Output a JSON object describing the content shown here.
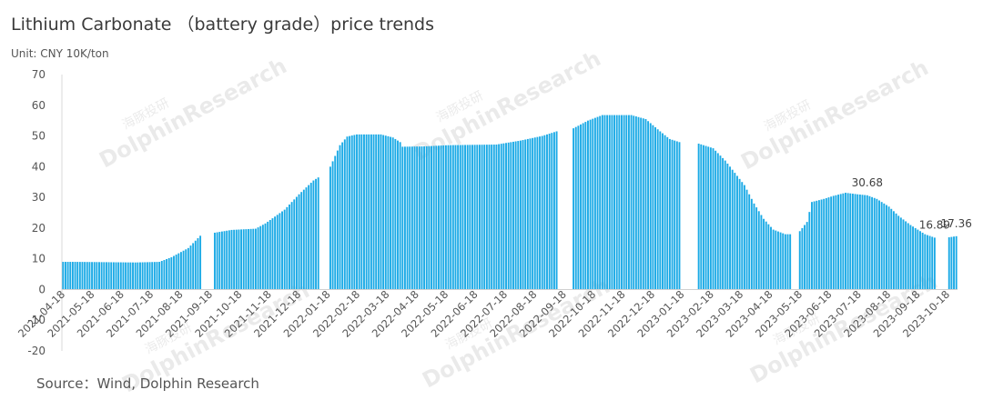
{
  "title": "Lithium Carbonate （battery grade）price trends",
  "unit": "Unit: CNY 10K/ton",
  "source": "Source：Wind, Dolphin Research",
  "watermark": {
    "cn": "海豚投研",
    "en": "DolphinResearch",
    "en2": "Dolphin Research"
  },
  "chart_data": {
    "type": "bar",
    "color": "#1BAAE6",
    "ylim": [
      -20,
      70
    ],
    "yticks": [
      -20,
      -10,
      0,
      10,
      20,
      30,
      40,
      50,
      60,
      70
    ],
    "xlabels": [
      "2021-04-18",
      "2021-05-18",
      "2021-06-18",
      "2021-07-18",
      "2021-08-18",
      "2021-09-18",
      "2021-10-18",
      "2021-11-18",
      "2021-12-18",
      "2022-01-18",
      "2022-02-18",
      "2022-03-18",
      "2022-04-18",
      "2022-05-18",
      "2022-06-18",
      "2022-07-18",
      "2022-08-18",
      "2022-09-18",
      "2022-10-18",
      "2022-11-18",
      "2022-12-18",
      "2023-01-18",
      "2023-02-18",
      "2023-03-18",
      "2023-04-18",
      "2023-05-18",
      "2023-06-18",
      "2023-07-18",
      "2023-08-18",
      "2023-09-18",
      "2023-10-18"
    ],
    "anchors": [
      [
        0,
        9
      ],
      [
        4,
        9
      ],
      [
        4.3,
        0
      ],
      [
        5,
        9
      ],
      [
        30,
        8.8
      ],
      [
        40,
        9
      ],
      [
        45,
        10.5
      ],
      [
        52,
        13.5
      ],
      [
        57,
        17.5
      ],
      [
        58,
        0
      ],
      [
        62,
        0
      ],
      [
        63,
        18.5
      ],
      [
        70,
        19.4
      ],
      [
        80,
        19.8
      ],
      [
        84,
        21.5
      ],
      [
        92,
        26
      ],
      [
        98,
        31
      ],
      [
        104,
        35.5
      ],
      [
        106,
        36.5
      ],
      [
        107,
        0
      ],
      [
        110,
        0
      ],
      [
        111,
        40
      ],
      [
        115,
        47
      ],
      [
        118,
        49.8
      ],
      [
        122,
        50.5
      ],
      [
        132,
        50.5
      ],
      [
        137,
        49.5
      ],
      [
        140,
        48
      ],
      [
        141,
        46.5
      ],
      [
        150,
        46.6
      ],
      [
        160,
        47
      ],
      [
        180,
        47.2
      ],
      [
        190,
        48.5
      ],
      [
        199,
        50
      ],
      [
        205,
        51.5
      ],
      [
        206,
        0
      ],
      [
        211,
        0
      ],
      [
        212,
        52.5
      ],
      [
        218,
        55
      ],
      [
        224,
        56.8
      ],
      [
        236,
        56.8
      ],
      [
        242,
        55.5
      ],
      [
        248,
        51.5
      ],
      [
        252,
        49
      ],
      [
        256,
        48
      ],
      [
        257,
        0
      ],
      [
        263,
        0
      ],
      [
        264,
        47.5
      ],
      [
        270,
        46
      ],
      [
        275,
        42
      ],
      [
        283,
        34
      ],
      [
        287,
        28
      ],
      [
        291,
        23
      ],
      [
        295,
        19.5
      ],
      [
        300,
        18
      ],
      [
        302,
        18
      ],
      [
        303,
        0
      ],
      [
        305,
        0
      ],
      [
        306,
        19
      ],
      [
        309,
        22
      ],
      [
        311,
        28.5
      ],
      [
        316,
        29.5
      ],
      [
        320,
        30.5
      ],
      [
        325,
        31.5
      ],
      [
        330,
        31
      ],
      [
        334,
        30.68
      ],
      [
        338,
        29.5
      ],
      [
        343,
        27
      ],
      [
        347,
        24
      ],
      [
        352,
        21
      ],
      [
        355,
        19.5
      ],
      [
        358,
        18
      ],
      [
        362,
        16.89
      ],
      [
        363,
        0
      ],
      [
        367,
        0
      ],
      [
        368,
        17
      ],
      [
        371,
        17.36
      ]
    ],
    "annotations": [
      {
        "text": "30.68",
        "index": 334,
        "value": 30.68
      },
      {
        "text": "16.89",
        "index": 362,
        "value": 16.89
      },
      {
        "text": "17.36",
        "index": 371,
        "value": 17.36
      }
    ],
    "grid": false,
    "legend": "none"
  }
}
